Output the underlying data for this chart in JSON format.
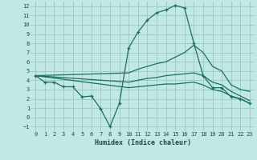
{
  "background_color": "#c2e8e5",
  "grid_color": "#9dccc8",
  "line_color": "#1a7060",
  "xlabel": "Humidex (Indice chaleur)",
  "xlim": [
    -0.5,
    23.5
  ],
  "ylim": [
    -1.5,
    12.5
  ],
  "xticks": [
    0,
    1,
    2,
    3,
    4,
    5,
    6,
    7,
    8,
    9,
    10,
    11,
    12,
    13,
    14,
    15,
    16,
    17,
    18,
    19,
    20,
    21,
    22,
    23
  ],
  "yticks": [
    -1,
    0,
    1,
    2,
    3,
    4,
    5,
    6,
    7,
    8,
    9,
    10,
    11,
    12
  ],
  "line1_x": [
    0,
    1,
    2,
    3,
    4,
    5,
    6,
    7,
    8,
    9,
    10,
    11,
    12,
    13,
    14,
    15,
    16,
    17,
    18,
    19,
    20,
    21,
    22,
    23
  ],
  "line1_y": [
    4.5,
    3.8,
    3.8,
    3.3,
    3.3,
    2.2,
    2.3,
    0.9,
    -1.0,
    1.5,
    7.5,
    9.2,
    10.5,
    11.3,
    11.6,
    12.1,
    11.8,
    8.0,
    4.5,
    3.2,
    3.2,
    2.2,
    2.0,
    1.5
  ],
  "line2_x": [
    0,
    10,
    11,
    12,
    13,
    14,
    15,
    16,
    17,
    18,
    19,
    20,
    21,
    22,
    23
  ],
  "line2_y": [
    4.5,
    4.8,
    5.2,
    5.5,
    5.8,
    6.0,
    6.5,
    7.0,
    7.8,
    7.0,
    5.5,
    5.0,
    3.5,
    3.0,
    2.8
  ],
  "line3_x": [
    0,
    10,
    11,
    12,
    13,
    14,
    15,
    16,
    17,
    18,
    19,
    20,
    21,
    22,
    23
  ],
  "line3_y": [
    4.5,
    3.8,
    4.0,
    4.2,
    4.3,
    4.5,
    4.6,
    4.7,
    4.8,
    4.5,
    3.8,
    3.5,
    2.8,
    2.3,
    1.8
  ],
  "line4_x": [
    0,
    10,
    11,
    12,
    13,
    14,
    15,
    16,
    17,
    18,
    19,
    20,
    21,
    22,
    23
  ],
  "line4_y": [
    4.5,
    3.2,
    3.3,
    3.4,
    3.5,
    3.6,
    3.6,
    3.7,
    3.8,
    3.5,
    3.0,
    2.8,
    2.3,
    2.0,
    1.5
  ]
}
